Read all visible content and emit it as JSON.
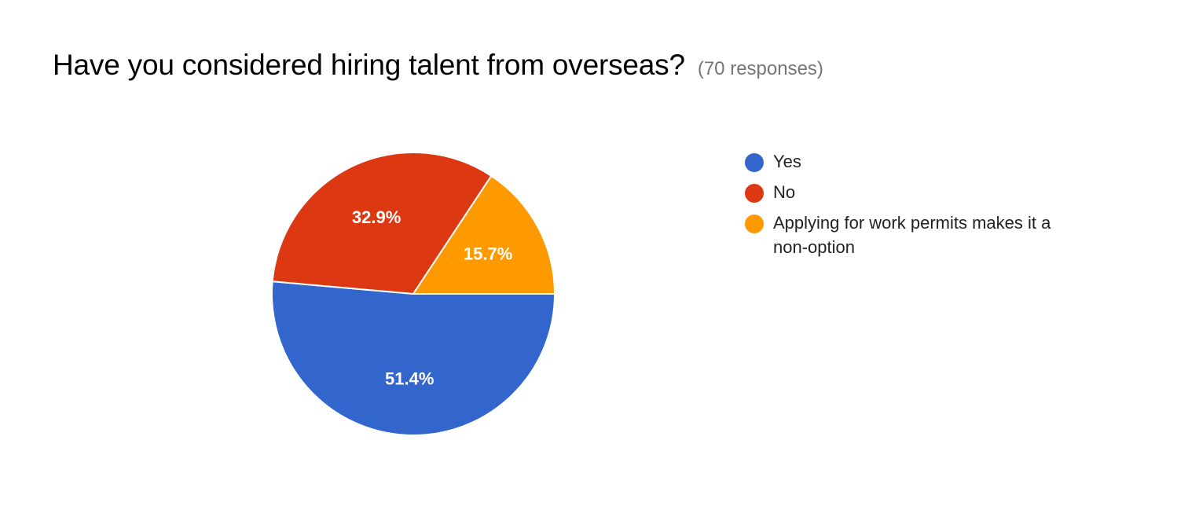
{
  "header": {
    "title": "Have you considered hiring talent from overseas?",
    "responses": "(70 responses)"
  },
  "chart_data": {
    "type": "pie",
    "title": "Have you considered hiring talent from overseas?",
    "subtitle": "(70 responses)",
    "legend_position": "right",
    "slices": [
      {
        "label": "Yes",
        "value": 51.4,
        "display": "51.4%",
        "color": "#3366cc"
      },
      {
        "label": "No",
        "value": 32.9,
        "display": "32.9%",
        "color": "#dc3912"
      },
      {
        "label": "Applying for work permits makes it a non-option",
        "value": 15.7,
        "display": "15.7%",
        "color": "#ff9900"
      }
    ]
  }
}
